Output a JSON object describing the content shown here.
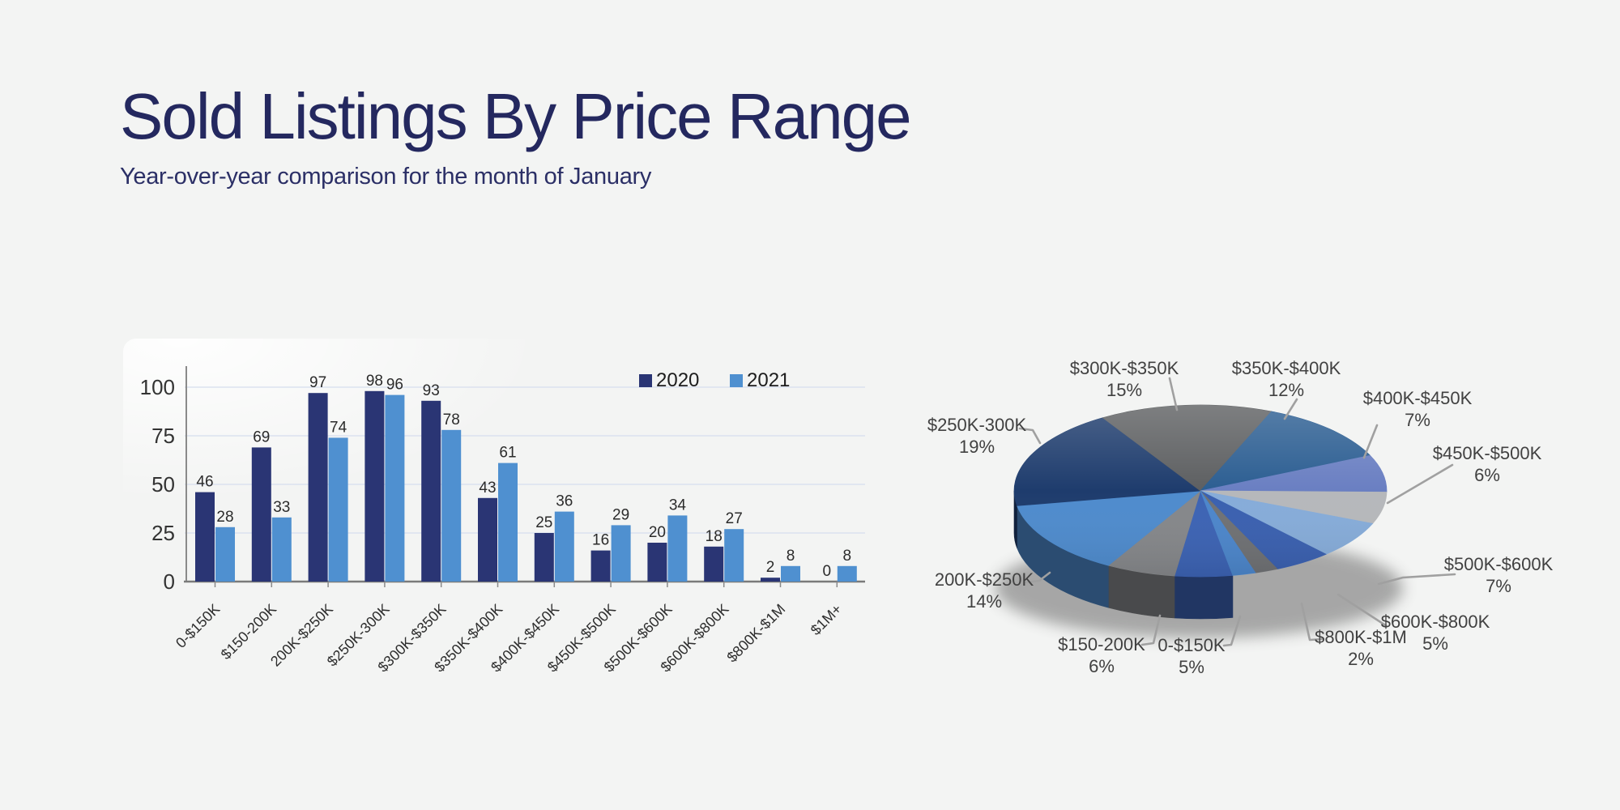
{
  "header": {
    "title": "Sold Listings By Price Range",
    "subtitle": "Year-over-year comparison for the month of January",
    "title_color": "#24285f"
  },
  "colors": {
    "background": "#f3f4f3",
    "grid_line": "#dbe2ef",
    "axis_line": "#7a7a7a",
    "tick_text": "#2e2e2e",
    "pie_label_text": "#414141",
    "leader_line": "#a0a0a0"
  },
  "chart_data": [
    {
      "type": "bar",
      "title": "Sold listings count by price range, grouped bars",
      "categories": [
        "0-$150K",
        "$150-200K",
        "200K-$250K",
        "$250K-300K",
        "$300K-$350K",
        "$350K-$400K",
        "$400K-$450K",
        "$450K-$500K",
        "$500K-$600K",
        "$600K-$800K",
        "$800K-$1M",
        "$1M+"
      ],
      "series": [
        {
          "name": "2020",
          "color": "#2a3574",
          "values": [
            46,
            69,
            97,
            98,
            93,
            43,
            25,
            16,
            20,
            18,
            2,
            0
          ]
        },
        {
          "name": "2021",
          "color": "#4f90d0",
          "values": [
            28,
            33,
            74,
            96,
            78,
            61,
            36,
            29,
            34,
            27,
            8,
            8
          ]
        }
      ],
      "xlabel": "",
      "ylabel": "",
      "ylim": [
        0,
        100
      ],
      "yticks": [
        0,
        25,
        50,
        75,
        100
      ],
      "grid": true,
      "legend_position": "top-right",
      "bar_value_labels": true
    },
    {
      "type": "pie",
      "style": "3d",
      "title": "Share of sold listings by price range",
      "start_angle_deg": 170,
      "direction": "clockwise",
      "slices": [
        {
          "label": "0-$150K",
          "pct": 5,
          "color": "#3c63b4",
          "labeled": true
        },
        {
          "label": "$150-200K",
          "pct": 6,
          "color": "#85878a",
          "labeled": true
        },
        {
          "label": "200K-$250K",
          "pct": 14,
          "color": "#4e8bcd",
          "labeled": true
        },
        {
          "label": "$250K-300K",
          "pct": 19,
          "color": "#1e3c6d",
          "labeled": true
        },
        {
          "label": "$300K-$350K",
          "pct": 15,
          "color": "#5d5f61",
          "labeled": true
        },
        {
          "label": "$350K-$400K",
          "pct": 12,
          "color": "#2c5e92",
          "labeled": true
        },
        {
          "label": "$400K-$450K",
          "pct": 7,
          "color": "#6a7fc2",
          "labeled": true
        },
        {
          "label": "$450K-$500K",
          "pct": 6,
          "color": "#b6b8bb",
          "labeled": true
        },
        {
          "label": "$500K-$600K",
          "pct": 7,
          "color": "#86acd9",
          "labeled": true
        },
        {
          "label": "$600K-$800K",
          "pct": 5,
          "color": "#3a60b0",
          "labeled": true
        },
        {
          "label": "$800K-$1M",
          "pct": 2,
          "color": "#6f7174",
          "labeled": true
        },
        {
          "label": "$1M+",
          "pct": 2,
          "color": "#4c86cb",
          "labeled": false
        }
      ]
    }
  ]
}
